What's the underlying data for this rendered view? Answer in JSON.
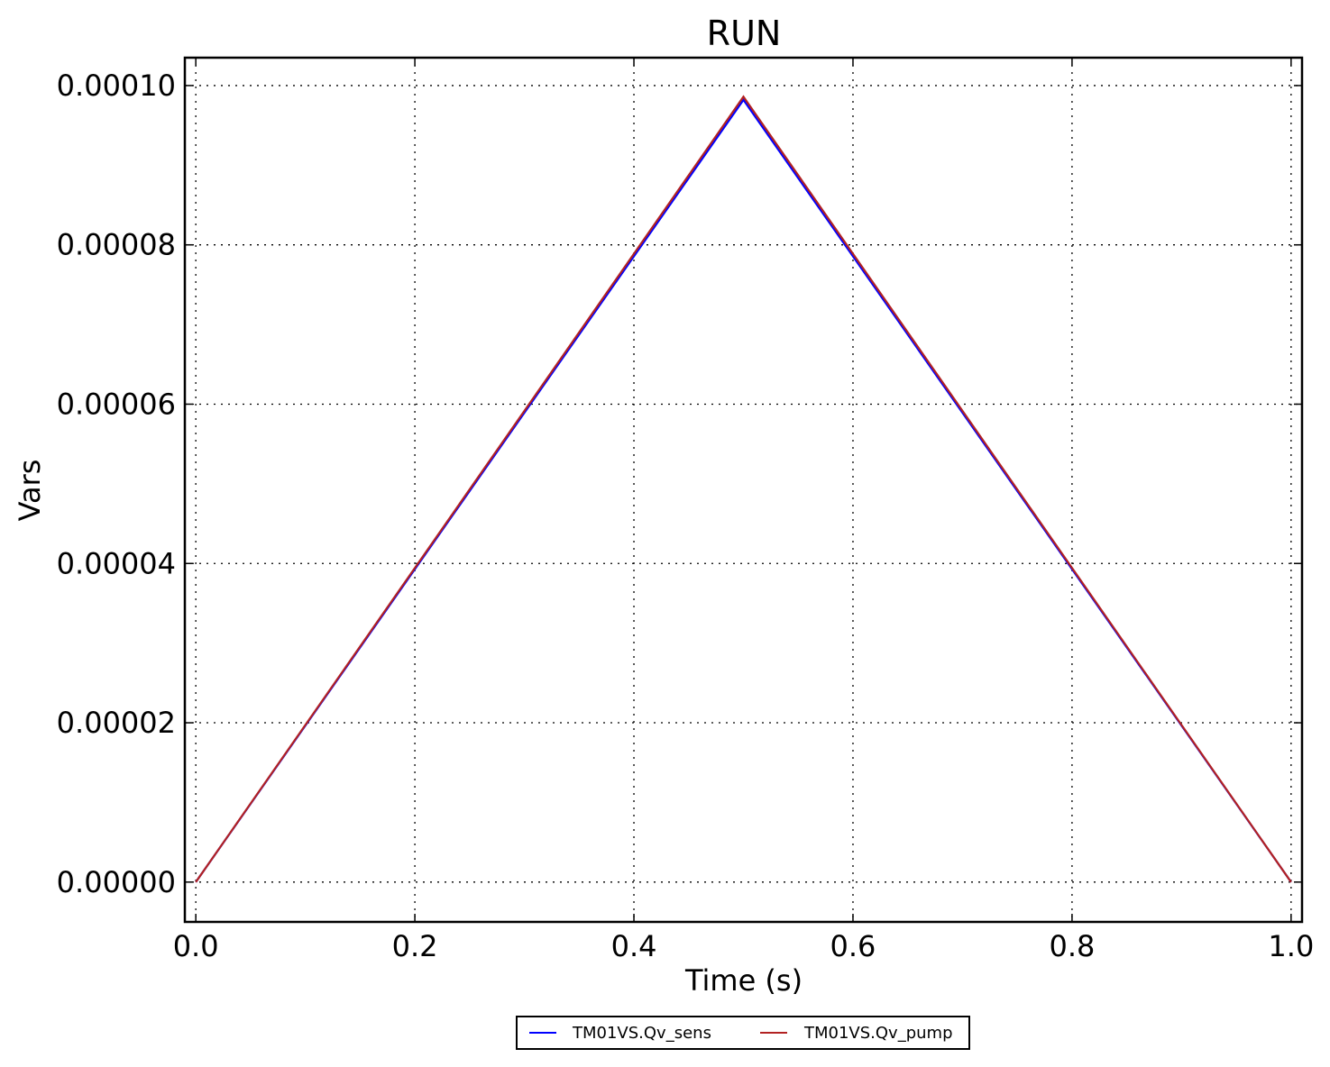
{
  "chart_data": {
    "type": "line",
    "title": "RUN",
    "xlabel": "Time (s)",
    "ylabel": "Vars",
    "xlim": [
      -0.01,
      1.01
    ],
    "ylim": [
      -5e-06,
      0.0001035
    ],
    "x_ticks": [
      0.0,
      0.2,
      0.4,
      0.6,
      0.8,
      1.0
    ],
    "x_tick_labels": [
      "0.0",
      "0.2",
      "0.4",
      "0.6",
      "0.8",
      "1.0"
    ],
    "y_ticks": [
      0.0,
      2e-05,
      4e-05,
      6e-05,
      8e-05,
      0.0001
    ],
    "y_tick_labels": [
      "0.00000",
      "0.00002",
      "0.00004",
      "0.00006",
      "0.00008",
      "0.00010"
    ],
    "grid": true,
    "legend_position": "bottom-center, below axes",
    "series": [
      {
        "name": "TM01VS.Qv_sens",
        "color": "#0000ff",
        "x": [
          0.0,
          0.5,
          1.0
        ],
        "y": [
          0.0,
          9.82e-05,
          0.0
        ]
      },
      {
        "name": "TM01VS.Qv_pump",
        "color": "#b22222",
        "x": [
          0.0,
          0.5,
          1.0
        ],
        "y": [
          0.0,
          9.86e-05,
          0.0
        ]
      }
    ]
  }
}
